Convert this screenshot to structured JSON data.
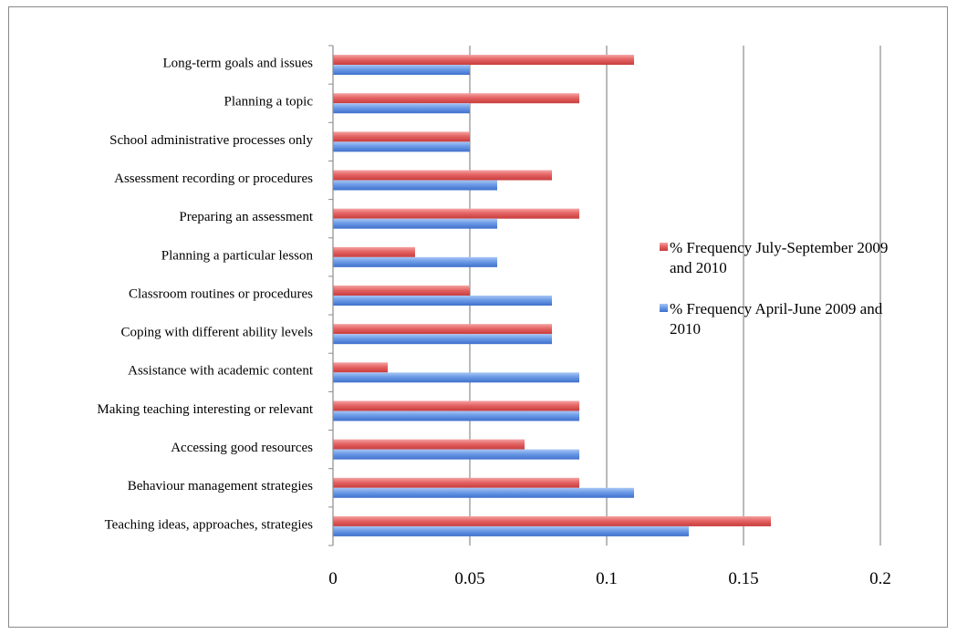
{
  "chart_data": {
    "type": "bar",
    "orientation": "horizontal",
    "title": "",
    "xlabel": "",
    "ylabel": "",
    "xlim": [
      0,
      0.2
    ],
    "x_ticks": [
      "0",
      "0.05",
      "0.1",
      "0.15",
      "0.2"
    ],
    "x_tick_values": [
      0,
      0.05,
      0.1,
      0.15,
      0.2
    ],
    "grid": "vertical major gridlines",
    "legend_position": "right",
    "categories": [
      "Long-term goals and issues",
      "Planning a topic",
      "School administrative processes only",
      "Assessment recording or procedures",
      "Preparing an assessment",
      "Planning a particular lesson",
      "Classroom routines or procedures",
      "Coping with different ability levels",
      "Assistance with academic content",
      "Making teaching interesting or relevant",
      "Accessing good resources",
      "Behaviour management strategies",
      "Teaching ideas, approaches, strategies"
    ],
    "series": [
      {
        "name_lines": [
          "% Frequency July-September 2009",
          "and 2010"
        ],
        "color": "#e05a5a",
        "values": [
          0.11,
          0.09,
          0.05,
          0.08,
          0.09,
          0.03,
          0.05,
          0.08,
          0.02,
          0.09,
          0.07,
          0.09,
          0.16
        ]
      },
      {
        "name_lines": [
          "% Frequency April-June 2009 and",
          "2010"
        ],
        "color": "#5b8fe0",
        "values": [
          0.05,
          0.05,
          0.05,
          0.06,
          0.06,
          0.06,
          0.08,
          0.08,
          0.09,
          0.09,
          0.09,
          0.11,
          0.13
        ]
      }
    ]
  }
}
